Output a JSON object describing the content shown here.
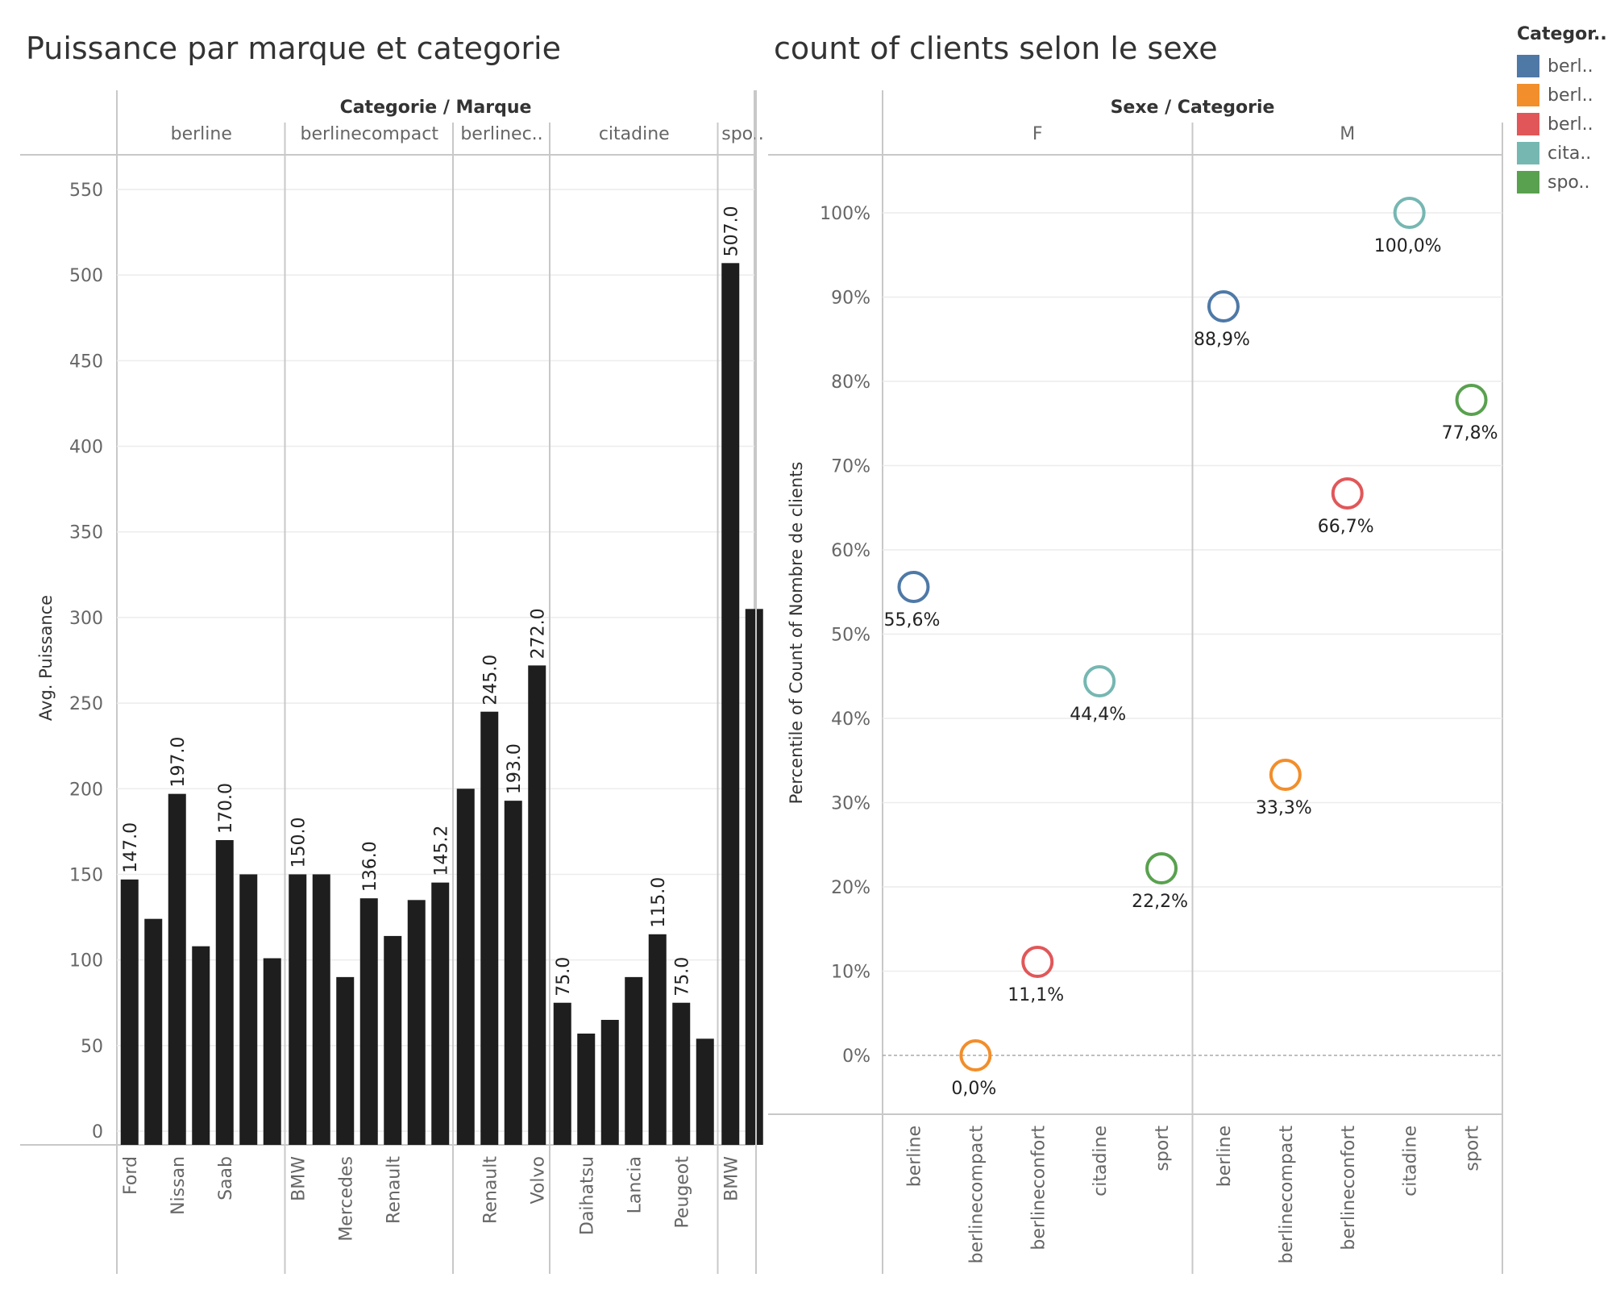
{
  "legend": {
    "title": "Categor..",
    "items": [
      {
        "label": "berl..",
        "color": "#4e79a7"
      },
      {
        "label": "berl..",
        "color": "#f28e2b"
      },
      {
        "label": "berl..",
        "color": "#e15759"
      },
      {
        "label": "cita..",
        "color": "#76b7b2"
      },
      {
        "label": "spo..",
        "color": "#59a14f"
      }
    ]
  },
  "chart_data": [
    {
      "type": "bar",
      "title": "Puissance par marque et categorie",
      "header": "Categorie / Marque",
      "ylabel": "Avg. Puissance",
      "ylim": [
        0,
        550
      ],
      "yticks": [
        0,
        50,
        100,
        150,
        200,
        250,
        300,
        350,
        400,
        450,
        500,
        550
      ],
      "bar_color": "#1e1e1e",
      "grid": true,
      "groups": [
        {
          "name": "berline",
          "bars": [
            {
              "label": "Ford",
              "value": 147.0,
              "show_value": true
            },
            {
              "label": "",
              "value": 124,
              "show_value": false
            },
            {
              "label": "Nissan",
              "value": 197.0,
              "show_value": true
            },
            {
              "label": "",
              "value": 108,
              "show_value": false
            },
            {
              "label": "Saab",
              "value": 170.0,
              "show_value": true
            },
            {
              "label": "",
              "value": 150,
              "show_value": false
            },
            {
              "label": "",
              "value": 101,
              "show_value": false
            }
          ]
        },
        {
          "name": "berlinecompact",
          "bars": [
            {
              "label": "BMW",
              "value": 150.0,
              "show_value": true
            },
            {
              "label": "",
              "value": 150,
              "show_value": false
            },
            {
              "label": "Mercedes",
              "value": 90,
              "show_value": false
            },
            {
              "label": "",
              "value": 136.0,
              "show_value": true
            },
            {
              "label": "Renault",
              "value": 114,
              "show_value": false
            },
            {
              "label": "",
              "value": 135,
              "show_value": false
            },
            {
              "label": "",
              "value": 145.2,
              "show_value": true
            }
          ]
        },
        {
          "name": "berlinec..",
          "bars": [
            {
              "label": "",
              "value": 200,
              "show_value": false
            },
            {
              "label": "Renault",
              "value": 245.0,
              "show_value": true
            },
            {
              "label": "",
              "value": 193.0,
              "show_value": true
            },
            {
              "label": "Volvo",
              "value": 272.0,
              "show_value": true
            }
          ]
        },
        {
          "name": "citadine",
          "bars": [
            {
              "label": "",
              "value": 75.0,
              "show_value": true
            },
            {
              "label": "Daihatsu",
              "value": 57,
              "show_value": false
            },
            {
              "label": "",
              "value": 65,
              "show_value": false
            },
            {
              "label": "Lancia",
              "value": 90,
              "show_value": false
            },
            {
              "label": "",
              "value": 115.0,
              "show_value": true
            },
            {
              "label": "Peugeot",
              "value": 75.0,
              "show_value": true
            },
            {
              "label": "",
              "value": 54,
              "show_value": false
            }
          ]
        },
        {
          "name": "spo..",
          "bars": [
            {
              "label": "BMW",
              "value": 507.0,
              "show_value": true
            },
            {
              "label": "",
              "value": 305,
              "show_value": false
            }
          ]
        }
      ]
    },
    {
      "type": "scatter",
      "title": "count of clients selon le sexe",
      "header": "Sexe / Categorie",
      "ylabel": "Percentile of Count of Nombre de clients",
      "ylim": [
        -0.07,
        1.07
      ],
      "yticks": [
        0,
        0.1,
        0.2,
        0.3,
        0.4,
        0.5,
        0.6,
        0.7,
        0.8,
        0.9,
        1.0
      ],
      "ytick_labels": [
        "0%",
        "10%",
        "20%",
        "30%",
        "40%",
        "50%",
        "60%",
        "70%",
        "80%",
        "90%",
        "100%"
      ],
      "grid": true,
      "panels": [
        {
          "name": "F",
          "points": [
            {
              "category": "berline",
              "value": 0.556,
              "label": "55,6%",
              "color": "#4e79a7"
            },
            {
              "category": "berlinecompact",
              "value": 0.0,
              "label": "0,0%",
              "color": "#f28e2b"
            },
            {
              "category": "berlineconfort",
              "value": 0.111,
              "label": "11,1%",
              "color": "#e15759"
            },
            {
              "category": "citadine",
              "value": 0.444,
              "label": "44,4%",
              "color": "#76b7b2"
            },
            {
              "category": "sport",
              "value": 0.222,
              "label": "22,2%",
              "color": "#59a14f"
            }
          ]
        },
        {
          "name": "M",
          "points": [
            {
              "category": "berline",
              "value": 0.889,
              "label": "88,9%",
              "color": "#4e79a7"
            },
            {
              "category": "berlinecompact",
              "value": 0.333,
              "label": "33,3%",
              "color": "#f28e2b"
            },
            {
              "category": "berlineconfort",
              "value": 0.667,
              "label": "66,7%",
              "color": "#e15759"
            },
            {
              "category": "citadine",
              "value": 1.0,
              "label": "100,0%",
              "color": "#76b7b2"
            },
            {
              "category": "sport",
              "value": 0.778,
              "label": "77,8%",
              "color": "#59a14f"
            }
          ]
        }
      ]
    }
  ]
}
